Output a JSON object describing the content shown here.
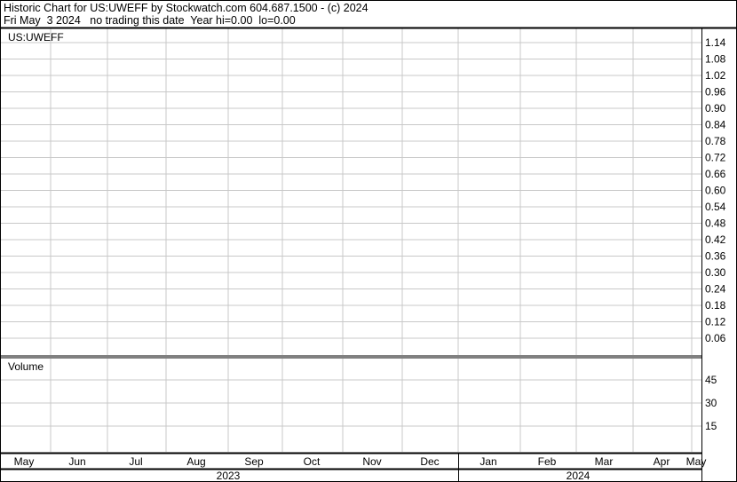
{
  "header": {
    "line1": "Historic Chart for US:UWEFF by Stockwatch.com 604.687.1500 - (c) 2024",
    "line2": "Fri May  3 2024   no trading this date  Year hi=0.00  lo=0.00"
  },
  "chart_data": [
    {
      "type": "line",
      "title": "US:UWEFF",
      "series": [],
      "y_ticks": [
        "1.14",
        "1.08",
        "1.02",
        "0.96",
        "0.90",
        "0.84",
        "0.78",
        "0.72",
        "0.66",
        "0.60",
        "0.54",
        "0.48",
        "0.42",
        "0.36",
        "0.30",
        "0.24",
        "0.18",
        "0.12",
        "0.06"
      ],
      "ylim": [
        0,
        1.14
      ],
      "grid": true,
      "y_axis_side": "right"
    },
    {
      "type": "bar",
      "title": "Volume",
      "series": [],
      "y_ticks": [
        "45",
        "30",
        "15"
      ],
      "grid": true,
      "y_axis_side": "right"
    }
  ],
  "x_axis": {
    "months": [
      "May",
      "Jun",
      "Jul",
      "Aug",
      "Sep",
      "Oct",
      "Nov",
      "Dec",
      "Jan",
      "Feb",
      "Mar",
      "Apr",
      "May"
    ],
    "years": [
      "2023",
      "2024"
    ]
  },
  "colors": {
    "grid": "#c8c8c8",
    "border": "#000000",
    "background": "#ffffff"
  }
}
